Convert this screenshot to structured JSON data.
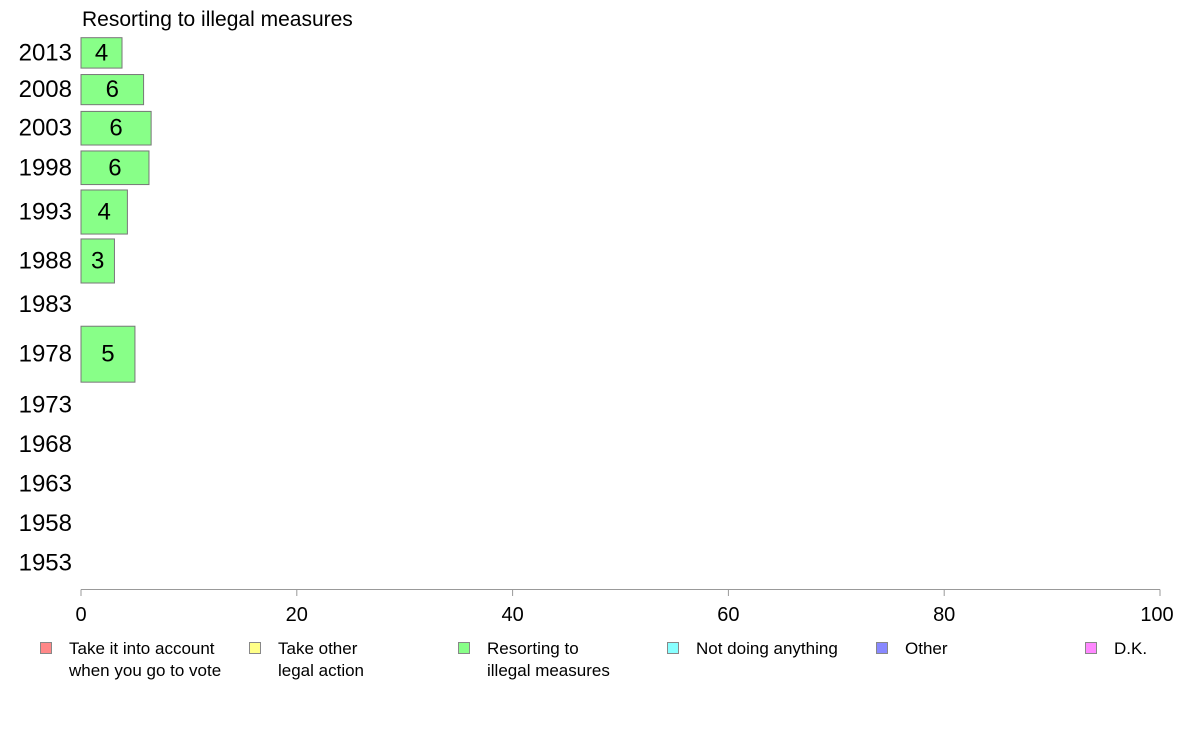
{
  "chart_data": {
    "type": "bar",
    "orientation": "horizontal",
    "title": "Resorting to illegal measures",
    "categories": [
      "2013",
      "2008",
      "2003",
      "1998",
      "1993",
      "1988",
      "1983",
      "1978",
      "1973",
      "1968",
      "1963",
      "1958",
      "1953"
    ],
    "series": [
      {
        "name": "Resorting to illegal measures",
        "color": "#88ff88",
        "values": [
          4,
          6,
          6,
          6,
          4,
          3,
          null,
          5,
          null,
          null,
          null,
          null,
          null
        ],
        "bar_values": [
          3.8,
          5.8,
          6.5,
          6.3,
          4.3,
          3.1,
          null,
          5.0,
          null,
          null,
          null,
          null,
          null
        ]
      }
    ],
    "row_weights": [
      0.95,
      1.0,
      1.05,
      1.05,
      1.3,
      1.3,
      1.0,
      1.65,
      1.05,
      1.05,
      1.05,
      1.05,
      1.05
    ],
    "bar_fill": [
      0.85,
      0.8,
      0.85,
      0.85,
      0.9,
      0.9,
      0,
      0.9,
      0,
      0,
      0,
      0,
      0
    ],
    "xlim": [
      0,
      100
    ],
    "x_ticks": [
      0,
      20,
      40,
      60,
      80,
      100
    ],
    "grid": false,
    "legend_position": "bottom"
  },
  "legend": {
    "items": [
      {
        "label": "Take it into account\nwhen you go to vote",
        "color": "#ff8888"
      },
      {
        "label": "Take other\nlegal action",
        "color": "#ffff88"
      },
      {
        "label": "Resorting to\nillegal measures",
        "color": "#88ff88"
      },
      {
        "label": "Not doing anything",
        "color": "#88ffff"
      },
      {
        "label": "Other",
        "color": "#8888ff"
      },
      {
        "label": "D.K.",
        "color": "#ff88ff"
      }
    ]
  }
}
